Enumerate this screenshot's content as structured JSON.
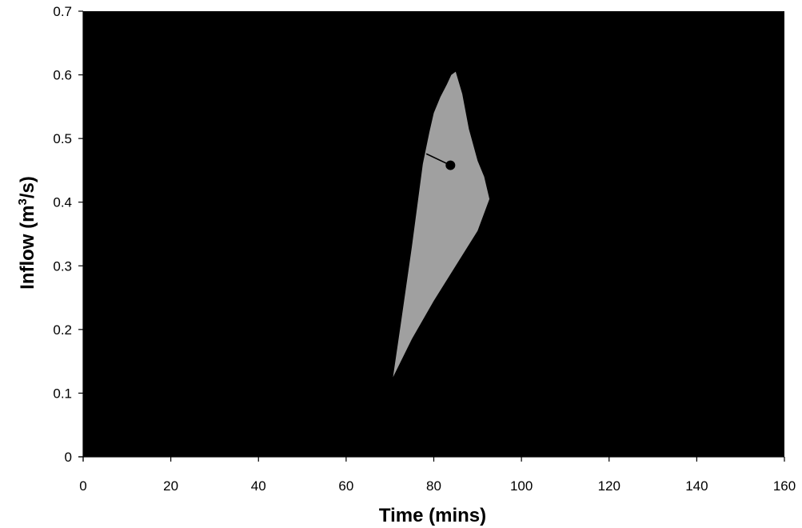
{
  "chart_data": {
    "type": "area",
    "xlabel": "Time (mins)",
    "ylabel": {
      "base": "Inflow (m",
      "superscript": "3",
      "suffix": "/s)"
    },
    "xlim": [
      0,
      160
    ],
    "ylim": [
      0,
      0.7
    ],
    "x_ticks": [
      0,
      20,
      40,
      60,
      80,
      100,
      120,
      140,
      160
    ],
    "y_ticks": [
      0,
      0.1,
      0.2,
      0.3,
      0.4,
      0.5,
      0.6,
      0.7
    ],
    "x_tick_labels": [
      "0",
      "20",
      "40",
      "60",
      "80",
      "100",
      "120",
      "140",
      "160"
    ],
    "y_tick_labels": [
      "0",
      "0.1",
      "0.2",
      "0.3",
      "0.4",
      "0.5",
      "0.6",
      "0.7"
    ],
    "grid": false,
    "colors": {
      "plot_background": "#000000",
      "loop_fill": "#a0a0a0",
      "axis": "#000000",
      "marker": "#000000"
    },
    "series": [
      {
        "type": "area",
        "x": [
          70.7,
          72.5,
          75.0,
          77.5,
          79.0,
          80.0,
          81.5,
          83.0,
          84.0,
          85.0,
          86.5,
          88.0,
          90.0,
          91.5,
          92.7,
          90.0,
          85.0,
          80.0,
          75.0,
          70.7
        ],
        "y": [
          0.125,
          0.21,
          0.33,
          0.46,
          0.51,
          0.54,
          0.565,
          0.585,
          0.6,
          0.605,
          0.57,
          0.515,
          0.465,
          0.44,
          0.405,
          0.355,
          0.3,
          0.245,
          0.185,
          0.125
        ]
      },
      {
        "type": "scatter",
        "x": [
          83.8
        ],
        "y": [
          0.458
        ],
        "leader_from": [
          78.3,
          0.476
        ]
      }
    ]
  }
}
